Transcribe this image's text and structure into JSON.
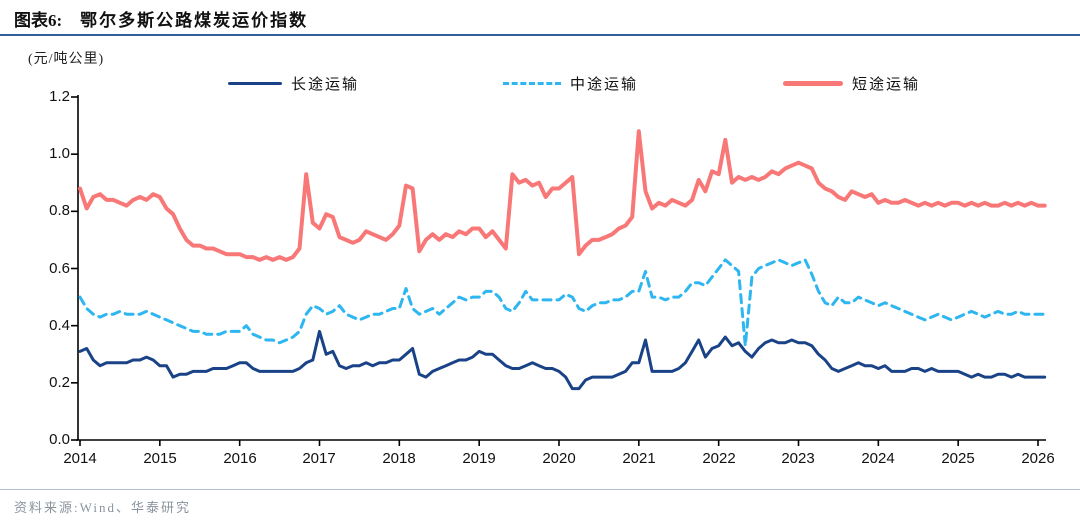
{
  "header": {
    "figure_label": "图表6:",
    "title": "鄂尔多斯公路煤炭运价指数"
  },
  "unit_label": "(元/吨公里)",
  "legend": [
    {
      "label": "长途运输",
      "color": "#1a4387",
      "style": "solid-thin"
    },
    {
      "label": "中途运输",
      "color": "#2eb6f0",
      "style": "dashed"
    },
    {
      "label": "短途运输",
      "color": "#f87878",
      "style": "solid-thick"
    }
  ],
  "footer": {
    "source": "资料来源:Wind、华泰研究"
  },
  "colors": {
    "header_rule": "#2f5f9f",
    "footer_rule": "#aebfd6",
    "source_text": "#8a939e",
    "axis": "#000000",
    "long_distance": "#1a4387",
    "mid_distance": "#2eb6f0",
    "short_distance": "#f87878"
  },
  "chart_data": {
    "type": "line",
    "title": "鄂尔多斯公路煤炭运价指数",
    "ylabel": "(元/吨公里)",
    "xlabel": "",
    "grid": false,
    "legend_position": "top",
    "ylim": [
      0.0,
      1.2
    ],
    "y_ticks_top_down": [
      "1.2",
      "1.0",
      "0.8",
      "0.6",
      "0.4",
      "0.2",
      "0.0"
    ],
    "y_tick_values": [
      1.2,
      1.0,
      0.8,
      0.6,
      0.4,
      0.2,
      0.0
    ],
    "x_ticks": [
      "2014",
      "2015",
      "2016",
      "2017",
      "2018",
      "2019",
      "2020",
      "2021",
      "2022",
      "2023",
      "2024",
      "2025",
      "2026"
    ],
    "x_start_year": 2014,
    "points_per_year": 12,
    "series": [
      {
        "name": "长途运输",
        "color": "#1a4387",
        "dash": null,
        "width": 3,
        "values": [
          0.31,
          0.32,
          0.28,
          0.26,
          0.27,
          0.27,
          0.27,
          0.27,
          0.28,
          0.28,
          0.29,
          0.28,
          0.26,
          0.26,
          0.22,
          0.23,
          0.23,
          0.24,
          0.24,
          0.24,
          0.25,
          0.25,
          0.25,
          0.26,
          0.27,
          0.27,
          0.25,
          0.24,
          0.24,
          0.24,
          0.24,
          0.24,
          0.24,
          0.25,
          0.27,
          0.28,
          0.38,
          0.3,
          0.31,
          0.26,
          0.25,
          0.26,
          0.26,
          0.27,
          0.26,
          0.27,
          0.27,
          0.28,
          0.28,
          0.3,
          0.32,
          0.23,
          0.22,
          0.24,
          0.25,
          0.26,
          0.27,
          0.28,
          0.28,
          0.29,
          0.31,
          0.3,
          0.3,
          0.28,
          0.26,
          0.25,
          0.25,
          0.26,
          0.27,
          0.26,
          0.25,
          0.25,
          0.24,
          0.22,
          0.18,
          0.18,
          0.21,
          0.22,
          0.22,
          0.22,
          0.22,
          0.23,
          0.24,
          0.27,
          0.27,
          0.35,
          0.24,
          0.24,
          0.24,
          0.24,
          0.25,
          0.27,
          0.31,
          0.35,
          0.29,
          0.32,
          0.33,
          0.36,
          0.33,
          0.34,
          0.31,
          0.29,
          0.32,
          0.34,
          0.35,
          0.34,
          0.34,
          0.35,
          0.34,
          0.34,
          0.33,
          0.3,
          0.28,
          0.25,
          0.24,
          0.25,
          0.26,
          0.27,
          0.26,
          0.26,
          0.25,
          0.26,
          0.24,
          0.24,
          0.24,
          0.25,
          0.25,
          0.24,
          0.25,
          0.24,
          0.24,
          0.24,
          0.24,
          0.23,
          0.22,
          0.23,
          0.22,
          0.22,
          0.23,
          0.23,
          0.22,
          0.23,
          0.22,
          0.22,
          0.22,
          0.22
        ]
      },
      {
        "name": "中途运输",
        "color": "#2eb6f0",
        "dash": "8,6",
        "width": 3,
        "values": [
          0.5,
          0.46,
          0.44,
          0.43,
          0.44,
          0.44,
          0.45,
          0.44,
          0.44,
          0.44,
          0.45,
          0.44,
          0.43,
          0.42,
          0.41,
          0.4,
          0.39,
          0.38,
          0.38,
          0.37,
          0.37,
          0.37,
          0.38,
          0.38,
          0.38,
          0.4,
          0.37,
          0.36,
          0.35,
          0.35,
          0.34,
          0.35,
          0.36,
          0.38,
          0.44,
          0.47,
          0.46,
          0.44,
          0.45,
          0.47,
          0.44,
          0.43,
          0.42,
          0.43,
          0.44,
          0.44,
          0.45,
          0.46,
          0.46,
          0.53,
          0.46,
          0.44,
          0.45,
          0.46,
          0.44,
          0.46,
          0.48,
          0.5,
          0.49,
          0.5,
          0.5,
          0.52,
          0.52,
          0.5,
          0.46,
          0.45,
          0.48,
          0.52,
          0.49,
          0.49,
          0.49,
          0.49,
          0.49,
          0.51,
          0.5,
          0.46,
          0.45,
          0.47,
          0.48,
          0.48,
          0.49,
          0.49,
          0.5,
          0.52,
          0.52,
          0.59,
          0.5,
          0.5,
          0.49,
          0.5,
          0.5,
          0.52,
          0.55,
          0.55,
          0.54,
          0.57,
          0.6,
          0.63,
          0.61,
          0.59,
          0.33,
          0.57,
          0.6,
          0.61,
          0.62,
          0.63,
          0.62,
          0.61,
          0.62,
          0.63,
          0.58,
          0.52,
          0.48,
          0.47,
          0.5,
          0.48,
          0.48,
          0.5,
          0.49,
          0.48,
          0.47,
          0.48,
          0.47,
          0.46,
          0.45,
          0.44,
          0.43,
          0.42,
          0.43,
          0.44,
          0.43,
          0.42,
          0.43,
          0.44,
          0.45,
          0.44,
          0.43,
          0.44,
          0.45,
          0.44,
          0.44,
          0.45,
          0.44,
          0.44,
          0.44,
          0.44
        ]
      },
      {
        "name": "短途运输",
        "color": "#f87878",
        "dash": null,
        "width": 4,
        "values": [
          0.88,
          0.81,
          0.85,
          0.86,
          0.84,
          0.84,
          0.83,
          0.82,
          0.84,
          0.85,
          0.84,
          0.86,
          0.85,
          0.81,
          0.79,
          0.74,
          0.7,
          0.68,
          0.68,
          0.67,
          0.67,
          0.66,
          0.65,
          0.65,
          0.65,
          0.64,
          0.64,
          0.63,
          0.64,
          0.63,
          0.64,
          0.63,
          0.64,
          0.67,
          0.93,
          0.76,
          0.74,
          0.79,
          0.78,
          0.71,
          0.7,
          0.69,
          0.7,
          0.73,
          0.72,
          0.71,
          0.7,
          0.72,
          0.75,
          0.89,
          0.88,
          0.66,
          0.7,
          0.72,
          0.7,
          0.72,
          0.71,
          0.73,
          0.72,
          0.74,
          0.74,
          0.71,
          0.73,
          0.7,
          0.67,
          0.93,
          0.9,
          0.91,
          0.89,
          0.9,
          0.85,
          0.88,
          0.88,
          0.9,
          0.92,
          0.65,
          0.68,
          0.7,
          0.7,
          0.71,
          0.72,
          0.74,
          0.75,
          0.78,
          1.08,
          0.87,
          0.81,
          0.83,
          0.82,
          0.84,
          0.83,
          0.82,
          0.84,
          0.91,
          0.87,
          0.94,
          0.93,
          1.05,
          0.9,
          0.92,
          0.91,
          0.92,
          0.91,
          0.92,
          0.94,
          0.93,
          0.95,
          0.96,
          0.97,
          0.96,
          0.95,
          0.9,
          0.88,
          0.87,
          0.85,
          0.84,
          0.87,
          0.86,
          0.85,
          0.86,
          0.83,
          0.84,
          0.83,
          0.83,
          0.84,
          0.83,
          0.82,
          0.83,
          0.82,
          0.83,
          0.82,
          0.83,
          0.83,
          0.82,
          0.83,
          0.82,
          0.83,
          0.82,
          0.82,
          0.83,
          0.82,
          0.83,
          0.82,
          0.83,
          0.82,
          0.82
        ]
      }
    ]
  }
}
